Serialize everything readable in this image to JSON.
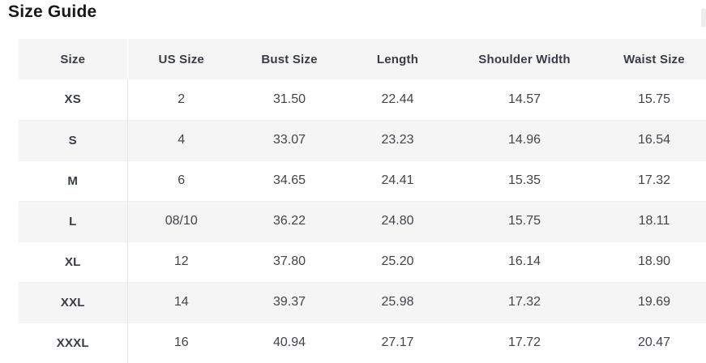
{
  "page": {
    "title": "Size Guide"
  },
  "table": {
    "columns": [
      "Size",
      "US Size",
      "Bust Size",
      "Length",
      "Shoulder Width",
      "Waist Size"
    ],
    "rows": [
      {
        "size": "XS",
        "us": "2",
        "bust": "31.50",
        "length": "22.44",
        "shoulder": "14.57",
        "waist": "15.75"
      },
      {
        "size": "S",
        "us": "4",
        "bust": "33.07",
        "length": "23.23",
        "shoulder": "14.96",
        "waist": "16.54"
      },
      {
        "size": "M",
        "us": "6",
        "bust": "34.65",
        "length": "24.41",
        "shoulder": "15.35",
        "waist": "17.32"
      },
      {
        "size": "L",
        "us": "08/10",
        "bust": "36.22",
        "length": "24.80",
        "shoulder": "15.75",
        "waist": "18.11"
      },
      {
        "size": "XL",
        "us": "12",
        "bust": "37.80",
        "length": "25.20",
        "shoulder": "16.14",
        "waist": "18.90"
      },
      {
        "size": "XXL",
        "us": "14",
        "bust": "39.37",
        "length": "25.98",
        "shoulder": "17.32",
        "waist": "19.69"
      },
      {
        "size": "XXXL",
        "us": "16",
        "bust": "40.94",
        "length": "27.17",
        "shoulder": "17.72",
        "waist": "20.47"
      }
    ]
  },
  "colors": {
    "stripe": "#f5f5f5",
    "header_text": "#383c46",
    "cell_text": "#40444d",
    "title_text": "#16181d",
    "divider": "#e8e8e8"
  }
}
